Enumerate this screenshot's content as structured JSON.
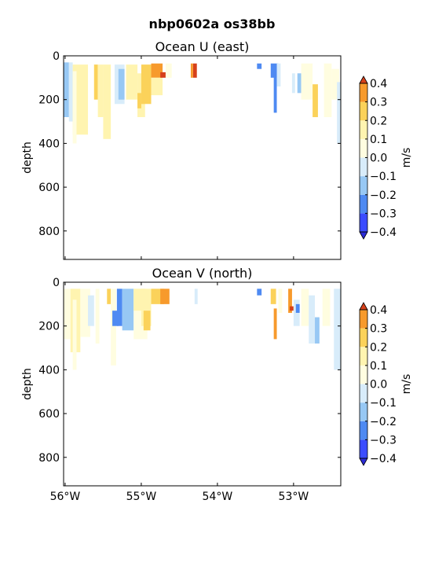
{
  "figure": {
    "suptitle": "nbp0602a os38bb"
  },
  "colors": {
    "levels": [
      -0.4,
      -0.3,
      -0.2,
      -0.1,
      0.0,
      0.1,
      0.2,
      0.3,
      0.4
    ],
    "bins": [
      "#3b4cff",
      "#4e8af2",
      "#97c8f4",
      "#d8ecfa",
      "#fffde0",
      "#fff4b0",
      "#fbd25a",
      "#f79a2c"
    ],
    "under": "#2b2bd6",
    "over": "#d6401a"
  },
  "chart_data": [
    {
      "type": "heatmap",
      "title": "Ocean U (east)",
      "ylabel": "depth",
      "ylim": [
        930,
        0
      ],
      "yticks": [
        0,
        200,
        400,
        600,
        800
      ],
      "ytick_labels": [
        "0",
        "200",
        "400",
        "600",
        "800"
      ],
      "xlim": [
        -56.02,
        -52.38
      ],
      "xticks": [
        -56,
        -55,
        -54,
        -53
      ],
      "colorbar": {
        "label": "m/s",
        "ticks": [
          "0.4",
          "0.3",
          "0.2",
          "0.1",
          "0.0",
          "−0.1",
          "−0.2",
          "−0.3",
          "−0.4"
        ]
      },
      "cells": [
        {
          "x0": -56.02,
          "x1": -55.95,
          "d0": 30,
          "d1": 280,
          "v": -0.15
        },
        {
          "x0": -55.95,
          "x1": -55.9,
          "d0": 30,
          "d1": 300,
          "v": -0.05
        },
        {
          "x0": -55.9,
          "x1": -55.7,
          "d0": 40,
          "d1": 360,
          "v": 0.15
        },
        {
          "x0": -55.9,
          "x1": -55.85,
          "d0": 70,
          "d1": 400,
          "v": 0.05
        },
        {
          "x0": -55.62,
          "x1": -55.57,
          "d0": 40,
          "d1": 200,
          "v": 0.25
        },
        {
          "x0": -55.57,
          "x1": -55.5,
          "d0": 40,
          "d1": 280,
          "v": 0.15
        },
        {
          "x0": -55.5,
          "x1": -55.4,
          "d0": 40,
          "d1": 380,
          "v": 0.15
        },
        {
          "x0": -55.35,
          "x1": -55.22,
          "d0": 40,
          "d1": 220,
          "v": -0.05
        },
        {
          "x0": -55.3,
          "x1": -55.22,
          "d0": 60,
          "d1": 200,
          "v": -0.15
        },
        {
          "x0": -55.2,
          "x1": -55.05,
          "d0": 40,
          "d1": 200,
          "v": 0.15
        },
        {
          "x0": -55.05,
          "x1": -54.95,
          "d0": 80,
          "d1": 280,
          "v": 0.15
        },
        {
          "x0": -55.05,
          "x1": -55.0,
          "d0": 170,
          "d1": 240,
          "v": 0.25
        },
        {
          "x0": -55.0,
          "x1": -54.87,
          "d0": 40,
          "d1": 140,
          "v": 0.25
        },
        {
          "x0": -55.0,
          "x1": -54.87,
          "d0": 140,
          "d1": 220,
          "v": 0.25
        },
        {
          "x0": -54.87,
          "x1": -54.72,
          "d0": 35,
          "d1": 100,
          "v": 0.35
        },
        {
          "x0": -54.87,
          "x1": -54.72,
          "d0": 100,
          "d1": 180,
          "v": 0.15
        },
        {
          "x0": -54.75,
          "x1": -54.68,
          "d0": 75,
          "d1": 100,
          "v": 0.45
        },
        {
          "x0": -54.68,
          "x1": -54.6,
          "d0": 35,
          "d1": 100,
          "v": 0.05
        },
        {
          "x0": -54.32,
          "x1": -54.27,
          "d0": 35,
          "d1": 100,
          "v": 0.45
        },
        {
          "x0": -54.35,
          "x1": -54.32,
          "d0": 35,
          "d1": 100,
          "v": 0.35
        },
        {
          "x0": -53.48,
          "x1": -53.42,
          "d0": 35,
          "d1": 60,
          "v": -0.25
        },
        {
          "x0": -53.3,
          "x1": -53.2,
          "d0": 35,
          "d1": 100,
          "v": -0.25
        },
        {
          "x0": -53.26,
          "x1": -53.22,
          "d0": 90,
          "d1": 260,
          "v": -0.25
        },
        {
          "x0": -53.22,
          "x1": -53.17,
          "d0": 35,
          "d1": 140,
          "v": -0.05
        },
        {
          "x0": -53.02,
          "x1": -52.98,
          "d0": 80,
          "d1": 170,
          "v": -0.05
        },
        {
          "x0": -52.95,
          "x1": -52.9,
          "d0": 80,
          "d1": 170,
          "v": -0.15
        },
        {
          "x0": -52.9,
          "x1": -52.75,
          "d0": 35,
          "d1": 200,
          "v": 0.05
        },
        {
          "x0": -52.75,
          "x1": -52.68,
          "d0": 130,
          "d1": 280,
          "v": 0.25
        },
        {
          "x0": -52.6,
          "x1": -52.5,
          "d0": 35,
          "d1": 280,
          "v": 0.05
        },
        {
          "x0": -52.5,
          "x1": -52.4,
          "d0": 60,
          "d1": 200,
          "v": 0.05
        },
        {
          "x0": -52.43,
          "x1": -52.38,
          "d0": 120,
          "d1": 400,
          "v": -0.05
        }
      ]
    },
    {
      "type": "heatmap",
      "title": "Ocean V (north)",
      "ylabel": "depth",
      "ylim": [
        930,
        0
      ],
      "yticks": [
        0,
        200,
        400,
        600,
        800
      ],
      "ytick_labels": [
        "0",
        "200",
        "400",
        "600",
        "800"
      ],
      "xlim": [
        -56.02,
        -52.38
      ],
      "xticks": [
        -56,
        -55,
        -54,
        -53
      ],
      "xtick_labels": [
        "56°W",
        "55°W",
        "54°W",
        "53°W"
      ],
      "colorbar": {
        "label": "m/s",
        "ticks": [
          "0.4",
          "0.3",
          "0.2",
          "0.1",
          "0.0",
          "−0.1",
          "−0.2",
          "−0.3",
          "−0.4"
        ]
      },
      "cells": [
        {
          "x0": -56.02,
          "x1": -55.93,
          "d0": 30,
          "d1": 260,
          "v": 0.05
        },
        {
          "x0": -55.93,
          "x1": -55.8,
          "d0": 30,
          "d1": 320,
          "v": 0.15
        },
        {
          "x0": -55.9,
          "x1": -55.85,
          "d0": 80,
          "d1": 400,
          "v": 0.05
        },
        {
          "x0": -55.8,
          "x1": -55.67,
          "d0": 30,
          "d1": 250,
          "v": 0.05
        },
        {
          "x0": -55.7,
          "x1": -55.62,
          "d0": 60,
          "d1": 200,
          "v": -0.05
        },
        {
          "x0": -55.6,
          "x1": -55.55,
          "d0": 30,
          "d1": 280,
          "v": 0.05
        },
        {
          "x0": -55.45,
          "x1": -55.4,
          "d0": 30,
          "d1": 100,
          "v": 0.25
        },
        {
          "x0": -55.4,
          "x1": -55.33,
          "d0": 30,
          "d1": 380,
          "v": 0.05
        },
        {
          "x0": -55.32,
          "x1": -55.25,
          "d0": 30,
          "d1": 200,
          "v": -0.25
        },
        {
          "x0": -55.38,
          "x1": -55.3,
          "d0": 130,
          "d1": 200,
          "v": -0.25
        },
        {
          "x0": -55.25,
          "x1": -55.1,
          "d0": 30,
          "d1": 220,
          "v": -0.15
        },
        {
          "x0": -55.1,
          "x1": -54.92,
          "d0": 30,
          "d1": 260,
          "v": 0.05
        },
        {
          "x0": -55.1,
          "x1": -54.95,
          "d0": 30,
          "d1": 130,
          "v": 0.15
        },
        {
          "x0": -55.0,
          "x1": -54.87,
          "d0": 30,
          "d1": 200,
          "v": 0.15
        },
        {
          "x0": -54.97,
          "x1": -54.88,
          "d0": 130,
          "d1": 220,
          "v": 0.25
        },
        {
          "x0": -54.87,
          "x1": -54.7,
          "d0": 30,
          "d1": 100,
          "v": 0.25
        },
        {
          "x0": -54.75,
          "x1": -54.63,
          "d0": 30,
          "d1": 100,
          "v": 0.35
        },
        {
          "x0": -54.3,
          "x1": -54.26,
          "d0": 30,
          "d1": 100,
          "v": -0.05
        },
        {
          "x0": -53.48,
          "x1": -53.42,
          "d0": 30,
          "d1": 60,
          "v": -0.25
        },
        {
          "x0": -53.3,
          "x1": -53.23,
          "d0": 30,
          "d1": 100,
          "v": 0.25
        },
        {
          "x0": -53.26,
          "x1": -53.22,
          "d0": 120,
          "d1": 260,
          "v": 0.35
        },
        {
          "x0": -53.2,
          "x1": -53.15,
          "d0": 30,
          "d1": 140,
          "v": 0.05
        },
        {
          "x0": -53.07,
          "x1": -53.02,
          "d0": 30,
          "d1": 140,
          "v": 0.35
        },
        {
          "x0": -53.05,
          "x1": -53.0,
          "d0": 110,
          "d1": 130,
          "v": 0.45
        },
        {
          "x0": -53.0,
          "x1": -52.92,
          "d0": 80,
          "d1": 200,
          "v": -0.05
        },
        {
          "x0": -52.97,
          "x1": -52.92,
          "d0": 100,
          "d1": 140,
          "v": -0.25
        },
        {
          "x0": -52.9,
          "x1": -52.8,
          "d0": 30,
          "d1": 200,
          "v": 0.05
        },
        {
          "x0": -52.8,
          "x1": -52.72,
          "d0": 60,
          "d1": 280,
          "v": -0.05
        },
        {
          "x0": -52.72,
          "x1": -52.66,
          "d0": 160,
          "d1": 280,
          "v": -0.15
        },
        {
          "x0": -52.62,
          "x1": -52.52,
          "d0": 30,
          "d1": 200,
          "v": 0.05
        },
        {
          "x0": -52.47,
          "x1": -52.38,
          "d0": 30,
          "d1": 400,
          "v": -0.05
        }
      ]
    }
  ]
}
